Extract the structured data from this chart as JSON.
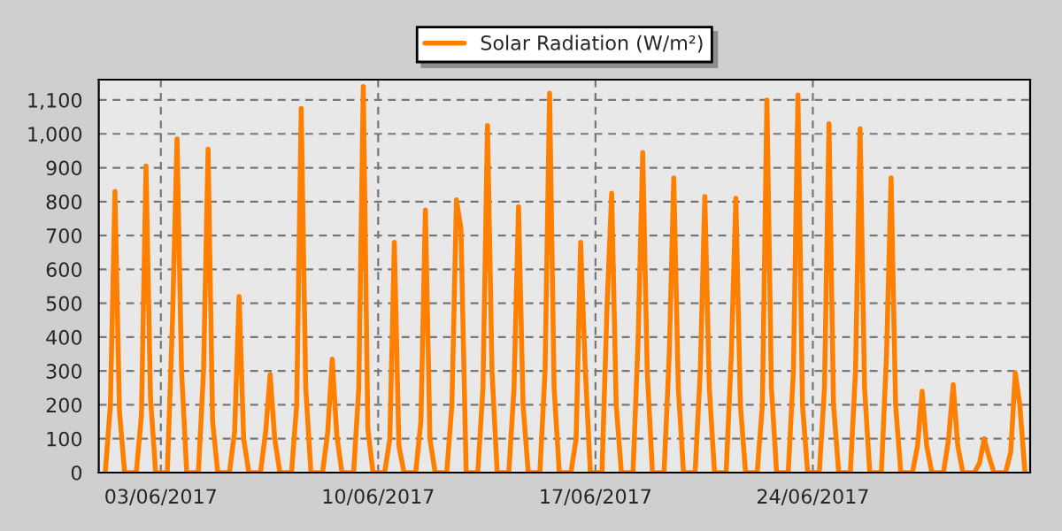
{
  "chart_data": {
    "type": "line",
    "xlim": [
      "2017-06-01",
      "2017-07-01"
    ],
    "xticks": [
      {
        "value": "2017-06-03",
        "label": "03/06/2017"
      },
      {
        "value": "2017-06-10",
        "label": "10/06/2017"
      },
      {
        "value": "2017-06-17",
        "label": "17/06/2017"
      },
      {
        "value": "2017-06-24",
        "label": "24/06/2017"
      }
    ],
    "ylim": [
      0,
      1160
    ],
    "yticks": [
      0,
      100,
      200,
      300,
      400,
      500,
      600,
      700,
      800,
      900,
      {
        "value": 1000,
        "label": "1,000"
      },
      {
        "value": 1100,
        "label": "1,100"
      }
    ],
    "grid": true,
    "legend": "top",
    "marker": "none",
    "line_style": "solid",
    "series": [
      {
        "name": "Solar Radiation (W/m²)",
        "color": "#ff8000",
        "x": [
          "2017-06-01T05:00",
          "2017-06-01T09:00",
          "2017-06-01T12:30",
          "2017-06-01T16:00",
          "2017-06-01T20:00",
          "2017-06-02T05:00",
          "2017-06-02T09:00",
          "2017-06-02T12:30",
          "2017-06-02T16:00",
          "2017-06-02T20:00",
          "2017-06-03T05:00",
          "2017-06-03T09:00",
          "2017-06-03T12:30",
          "2017-06-03T16:00",
          "2017-06-03T20:00",
          "2017-06-04T05:00",
          "2017-06-04T09:00",
          "2017-06-04T12:30",
          "2017-06-04T16:00",
          "2017-06-04T20:00",
          "2017-06-05T05:00",
          "2017-06-05T09:00",
          "2017-06-05T12:30",
          "2017-06-05T16:00",
          "2017-06-05T20:00",
          "2017-06-06T05:00",
          "2017-06-06T09:00",
          "2017-06-06T12:30",
          "2017-06-06T16:00",
          "2017-06-06T20:00",
          "2017-06-07T05:00",
          "2017-06-07T09:00",
          "2017-06-07T12:30",
          "2017-06-07T16:00",
          "2017-06-07T20:00",
          "2017-06-08T05:00",
          "2017-06-08T09:00",
          "2017-06-08T12:30",
          "2017-06-08T16:00",
          "2017-06-08T20:00",
          "2017-06-09T05:00",
          "2017-06-09T09:00",
          "2017-06-09T12:30",
          "2017-06-09T16:00",
          "2017-06-09T20:00",
          "2017-06-10T05:00",
          "2017-06-10T09:00",
          "2017-06-10T12:30",
          "2017-06-10T16:00",
          "2017-06-10T20:00",
          "2017-06-11T05:00",
          "2017-06-11T09:00",
          "2017-06-11T12:30",
          "2017-06-11T16:00",
          "2017-06-11T20:00",
          "2017-06-12T05:00",
          "2017-06-12T09:00",
          "2017-06-12T12:30",
          "2017-06-12T16:00",
          "2017-06-12T20:00",
          "2017-06-13T05:00",
          "2017-06-13T09:00",
          "2017-06-13T12:30",
          "2017-06-13T16:00",
          "2017-06-13T20:00",
          "2017-06-14T05:00",
          "2017-06-14T09:00",
          "2017-06-14T12:30",
          "2017-06-14T16:00",
          "2017-06-14T20:00",
          "2017-06-15T05:00",
          "2017-06-15T09:00",
          "2017-06-15T12:30",
          "2017-06-15T16:00",
          "2017-06-15T20:00",
          "2017-06-16T05:00",
          "2017-06-16T09:00",
          "2017-06-16T12:30",
          "2017-06-16T16:00",
          "2017-06-16T20:00",
          "2017-06-17T05:00",
          "2017-06-17T09:00",
          "2017-06-17T12:30",
          "2017-06-17T16:00",
          "2017-06-17T20:00",
          "2017-06-18T05:00",
          "2017-06-18T09:00",
          "2017-06-18T12:30",
          "2017-06-18T16:00",
          "2017-06-18T20:00",
          "2017-06-19T05:00",
          "2017-06-19T09:00",
          "2017-06-19T12:30",
          "2017-06-19T16:00",
          "2017-06-19T20:00",
          "2017-06-20T05:00",
          "2017-06-20T09:00",
          "2017-06-20T12:30",
          "2017-06-20T16:00",
          "2017-06-20T20:00",
          "2017-06-21T05:00",
          "2017-06-21T09:00",
          "2017-06-21T12:30",
          "2017-06-21T16:00",
          "2017-06-21T20:00",
          "2017-06-22T05:00",
          "2017-06-22T09:00",
          "2017-06-22T12:30",
          "2017-06-22T16:00",
          "2017-06-22T20:00",
          "2017-06-23T05:00",
          "2017-06-23T09:00",
          "2017-06-23T12:30",
          "2017-06-23T16:00",
          "2017-06-23T20:00",
          "2017-06-24T05:00",
          "2017-06-24T09:00",
          "2017-06-24T12:30",
          "2017-06-24T16:00",
          "2017-06-24T20:00",
          "2017-06-25T05:00",
          "2017-06-25T09:00",
          "2017-06-25T12:30",
          "2017-06-25T16:00",
          "2017-06-25T20:00",
          "2017-06-26T05:00",
          "2017-06-26T09:00",
          "2017-06-26T12:30",
          "2017-06-26T16:00",
          "2017-06-26T20:00",
          "2017-06-27T05:00",
          "2017-06-27T09:00",
          "2017-06-27T12:30",
          "2017-06-27T16:00",
          "2017-06-27T20:00",
          "2017-06-28T05:00",
          "2017-06-28T09:00",
          "2017-06-28T12:30",
          "2017-06-28T16:00",
          "2017-06-28T20:00",
          "2017-06-29T05:00",
          "2017-06-29T09:00",
          "2017-06-29T12:30",
          "2017-06-29T16:00",
          "2017-06-29T20:00",
          "2017-06-30T05:00",
          "2017-06-30T09:00",
          "2017-06-30T12:30",
          "2017-06-30T16:00",
          "2017-06-30T20:00"
        ],
        "values": [
          0,
          200,
          830,
          180,
          0,
          0,
          170,
          905,
          220,
          0,
          0,
          450,
          985,
          300,
          0,
          0,
          300,
          955,
          150,
          0,
          0,
          120,
          520,
          100,
          0,
          0,
          120,
          290,
          100,
          0,
          0,
          200,
          1075,
          250,
          0,
          0,
          120,
          335,
          110,
          0,
          0,
          250,
          1140,
          130,
          0,
          0,
          100,
          680,
          80,
          0,
          0,
          150,
          775,
          100,
          0,
          0,
          200,
          805,
          720,
          0,
          0,
          250,
          1025,
          300,
          0,
          0,
          250,
          785,
          200,
          0,
          0,
          300,
          1120,
          250,
          0,
          0,
          100,
          680,
          315,
          0,
          0,
          500,
          825,
          200,
          0,
          0,
          400,
          945,
          300,
          0,
          0,
          350,
          870,
          250,
          0,
          0,
          300,
          815,
          250,
          0,
          0,
          350,
          810,
          200,
          0,
          0,
          200,
          1100,
          250,
          0,
          0,
          300,
          1115,
          200,
          0,
          0,
          250,
          1030,
          200,
          0,
          0,
          300,
          1015,
          250,
          0,
          0,
          350,
          870,
          200,
          0,
          0,
          80,
          240,
          80,
          0,
          0,
          100,
          260,
          80,
          0,
          0,
          30,
          100,
          50,
          0,
          0,
          60,
          295,
          200,
          0
        ]
      }
    ]
  }
}
